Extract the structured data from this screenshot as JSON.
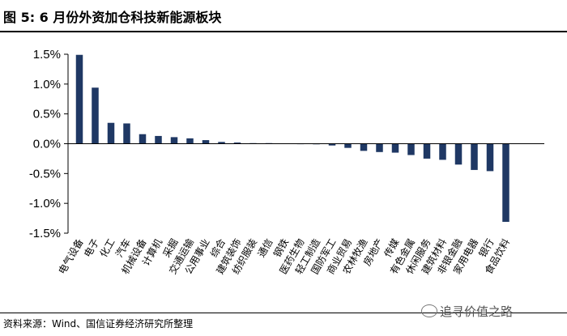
{
  "header": {
    "title": "图 5:  6 月份外资加仓科技新能源板块"
  },
  "footer": {
    "source": "资料来源：Wind、国信证券经济研究所整理",
    "watermark": "追寻价值之路"
  },
  "colors": {
    "bar": "#1f3864",
    "axis": "#000000"
  },
  "chart_data": {
    "type": "bar",
    "title": "6 月份外资加仓科技新能源板块",
    "xlabel": "",
    "ylabel": "",
    "ylim": [
      -1.5,
      1.5
    ],
    "yticks": [
      1.5,
      1.0,
      0.5,
      0.0,
      -0.5,
      -1.0,
      -1.5
    ],
    "ytick_labels": [
      "1.5%",
      "1.0%",
      "0.5%",
      "0.0%",
      "-0.5%",
      "-1.0%",
      "-1.5%"
    ],
    "grid": false,
    "categories": [
      "电气设备",
      "电子",
      "化工",
      "汽车",
      "机械设备",
      "计算机",
      "采掘",
      "交通运输",
      "公用事业",
      "综合",
      "建筑装饰",
      "纺织服装",
      "通信",
      "钢铁",
      "医药生物",
      "轻工制造",
      "国防军工",
      "商业贸易",
      "农林牧渔",
      "房地产",
      "传媒",
      "有色金属",
      "休闲服务",
      "建筑材料",
      "非银金融",
      "家用电器",
      "银行",
      "食品饮料"
    ],
    "values": [
      1.49,
      0.94,
      0.35,
      0.34,
      0.16,
      0.13,
      0.11,
      0.09,
      0.06,
      0.03,
      0.02,
      0.01,
      0.01,
      0.005,
      -0.005,
      -0.01,
      -0.03,
      -0.07,
      -0.12,
      -0.14,
      -0.15,
      -0.19,
      -0.25,
      -0.27,
      -0.35,
      -0.44,
      -0.46,
      -1.31
    ],
    "unit": "%"
  }
}
